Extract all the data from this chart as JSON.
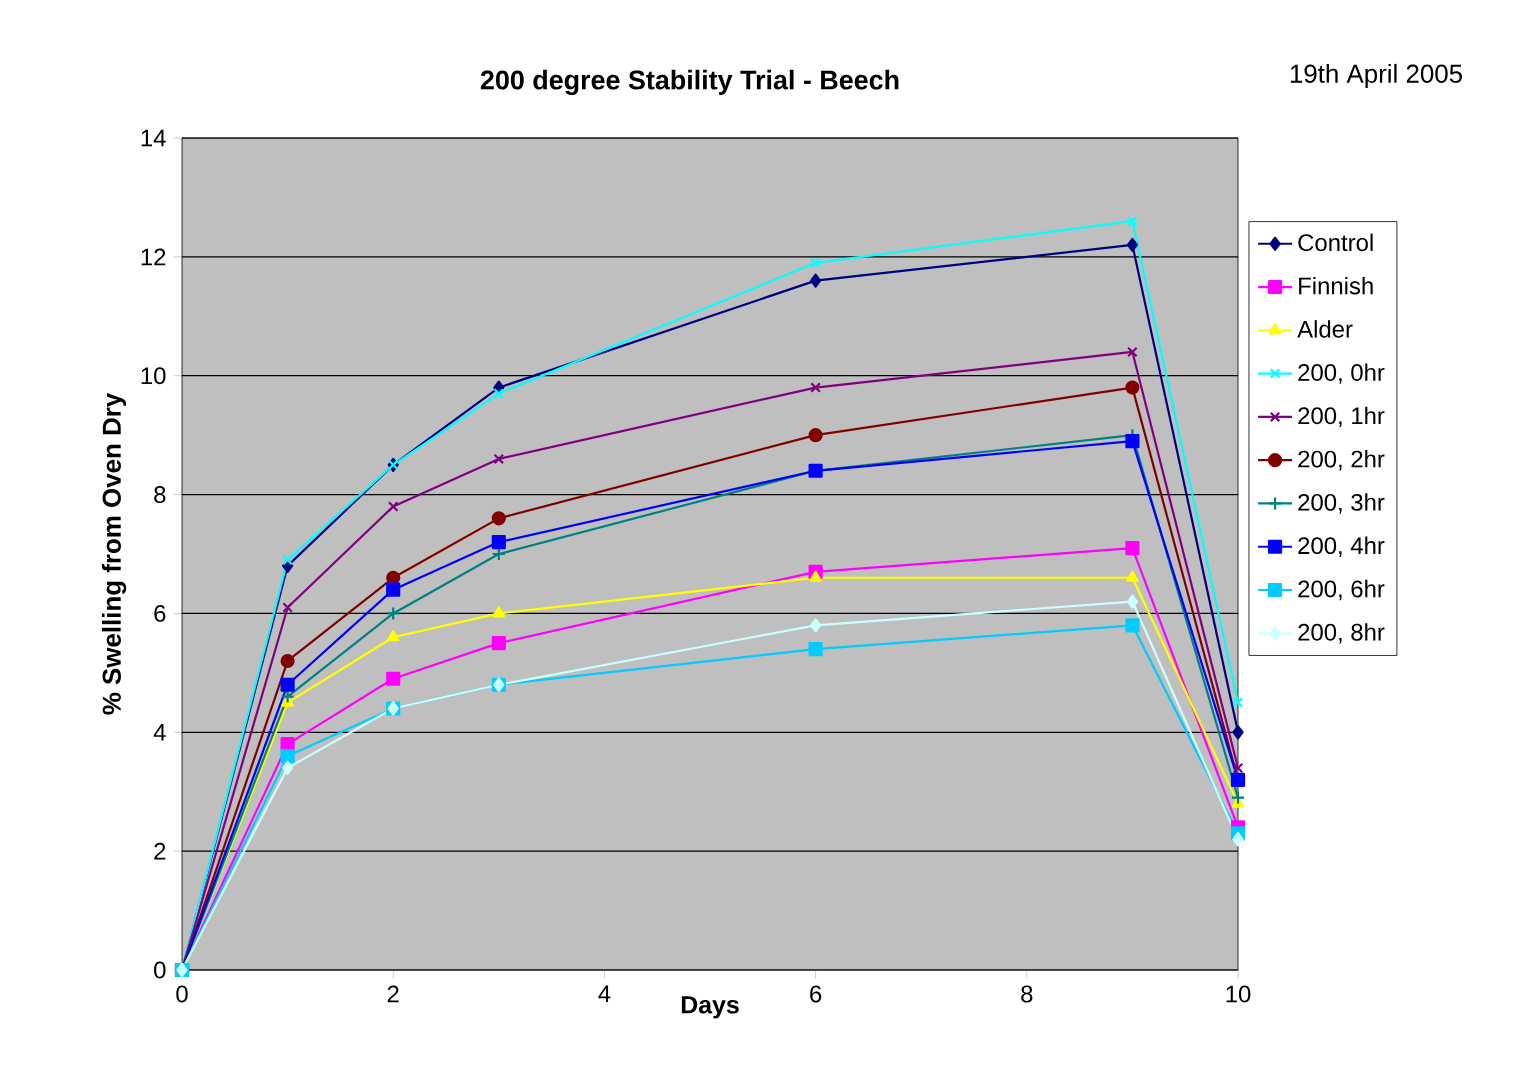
{
  "chart_data": {
    "type": "line",
    "title": "200 degree Stability Trial - Beech",
    "xlabel": "Days",
    "ylabel": "% Swelling from Oven Dry",
    "annotations": [
      "19th April 2005"
    ],
    "x": [
      0,
      1,
      2,
      3,
      6,
      9,
      10
    ],
    "xlim": [
      0,
      10
    ],
    "xticks": [
      0,
      2,
      4,
      6,
      8,
      10
    ],
    "ylim": [
      0,
      14
    ],
    "yticks": [
      0,
      2,
      4,
      6,
      8,
      10,
      12,
      14
    ],
    "grid": "y",
    "legend": "right",
    "line_style": "solid",
    "series": [
      {
        "name": "Control",
        "color": "#000080",
        "marker": "diamond",
        "values": [
          0,
          6.8,
          8.5,
          9.8,
          11.6,
          12.2,
          4.0
        ]
      },
      {
        "name": "Finnish",
        "color": "#ff00ff",
        "marker": "square",
        "values": [
          0,
          3.8,
          4.9,
          5.5,
          6.7,
          7.1,
          2.4
        ]
      },
      {
        "name": "Alder",
        "color": "#ffff00",
        "marker": "triangle",
        "values": [
          0,
          4.5,
          5.6,
          6.0,
          6.6,
          6.6,
          2.8
        ]
      },
      {
        "name": "200, 0hr",
        "color": "#00ffff",
        "marker": "cross",
        "values": [
          0,
          6.9,
          8.5,
          9.7,
          11.9,
          12.6,
          4.5
        ]
      },
      {
        "name": "200, 1hr",
        "color": "#800080",
        "marker": "cross",
        "values": [
          0,
          6.1,
          7.8,
          8.6,
          9.8,
          10.4,
          3.4
        ]
      },
      {
        "name": "200, 2hr",
        "color": "#800000",
        "marker": "circle",
        "values": [
          0,
          5.2,
          6.6,
          7.6,
          9.0,
          9.8,
          3.2
        ]
      },
      {
        "name": "200, 3hr",
        "color": "#008080",
        "marker": "plus",
        "values": [
          0,
          4.6,
          6.0,
          7.0,
          8.4,
          9.0,
          2.9
        ]
      },
      {
        "name": "200, 4hr",
        "color": "#0000ff",
        "marker": "square",
        "values": [
          0,
          4.8,
          6.4,
          7.2,
          8.4,
          8.9,
          3.2
        ]
      },
      {
        "name": "200, 6hr",
        "color": "#00ccff",
        "marker": "square",
        "values": [
          0,
          3.6,
          4.4,
          4.8,
          5.4,
          5.8,
          2.3
        ]
      },
      {
        "name": "200, 8hr",
        "color": "#ccffff",
        "marker": "diamond",
        "values": [
          0,
          3.4,
          4.4,
          4.8,
          5.8,
          6.2,
          2.2
        ]
      }
    ]
  }
}
